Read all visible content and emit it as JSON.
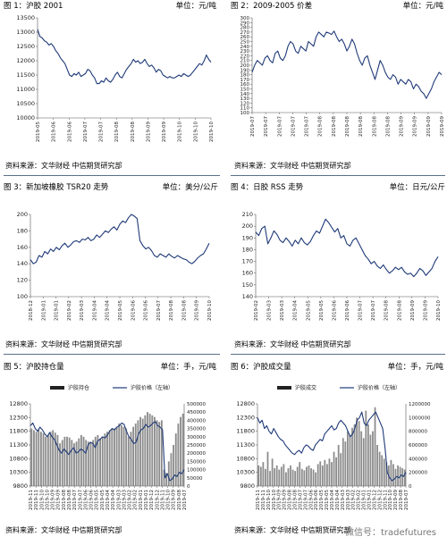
{
  "panels": [
    {
      "title": "图 1：沪胶 2001",
      "unit": "单位：元/吨",
      "source": "资料来源：文华财经  中信期货研究部"
    },
    {
      "title": "图 2：2009-2005 价差",
      "unit": "单位：元/吨",
      "source": "资料来源：文华财经  中信期货研究部"
    },
    {
      "title": "图 3：新加坡橡胶 TSR20 走势",
      "unit": "单位：美分/公斤",
      "source": "资料来源：文华财经  中信期货研究部"
    },
    {
      "title": "图 4：日胶 RSS 走势",
      "unit": "单位：日元/公斤",
      "source": "资料来源：文华财经  中信期货研究部"
    },
    {
      "title": "图 5：沪胶持仓量",
      "unit": "单位：手，元/吨",
      "source": "资料来源：文华财经  中信期货研究部"
    },
    {
      "title": "图 6：沪胶成交量",
      "unit": "单位：手，元/吨",
      "source": "资料来源：文华财经  中信期货研究部"
    }
  ],
  "watermark": "微信号：tradefutures",
  "colors": {
    "line": "#1f3a78",
    "bar": "#8c8c8c",
    "axis": "#555555",
    "separator": "#5a6f8a"
  },
  "chart_data": [
    {
      "type": "line",
      "ylim": [
        10000,
        13500
      ],
      "yticks": [
        10000,
        10500,
        11000,
        11500,
        12000,
        12500,
        13000,
        13500
      ],
      "xticks": [
        "2019-05",
        "2019-06",
        "2019-06",
        "2019-07",
        "2019-07",
        "2019-08",
        "2019-08",
        "2019-09",
        "2019-09",
        "2019-10",
        "2019-10",
        "2019-10"
      ],
      "values": [
        13100,
        12850,
        12800,
        12700,
        12650,
        12550,
        12600,
        12500,
        12350,
        12250,
        12100,
        12000,
        11900,
        11700,
        11500,
        11450,
        11550,
        11500,
        11600,
        11450,
        11500,
        11550,
        11700,
        11650,
        11500,
        11400,
        11200,
        11200,
        11300,
        11250,
        11400,
        11300,
        11250,
        11350,
        11500,
        11600,
        11450,
        11400,
        11550,
        11700,
        11800,
        11900,
        12050,
        11950,
        12000,
        11900,
        11950,
        12050,
        11900,
        11800,
        11850,
        11750,
        11600,
        11700,
        11650,
        11500,
        11450,
        11400,
        11450,
        11400,
        11400,
        11450,
        11500,
        11450,
        11550,
        11500,
        11450,
        11500,
        11600,
        11700,
        11800,
        11900,
        11850,
        12000,
        12200,
        12050,
        11950
      ]
    },
    {
      "type": "line",
      "ylim": [
        100,
        300
      ],
      "yticks": [
        100,
        110,
        120,
        130,
        140,
        150,
        160,
        170,
        180,
        190,
        200,
        210,
        220,
        230,
        240,
        250,
        260,
        270,
        280,
        290,
        300
      ],
      "xticks": [
        "2019-07",
        "2019-07",
        "2019-07",
        "2019-07",
        "2019-07",
        "2019-08",
        "2019-08",
        "2019-08",
        "2019-08",
        "2019-08",
        "2019-08",
        "2019-09",
        "2019-09",
        "2019-09",
        "2019-09"
      ],
      "values": [
        185,
        200,
        210,
        205,
        200,
        215,
        220,
        210,
        205,
        225,
        230,
        215,
        210,
        220,
        240,
        250,
        245,
        230,
        225,
        240,
        235,
        230,
        250,
        245,
        240,
        260,
        270,
        265,
        260,
        270,
        268,
        265,
        272,
        260,
        250,
        255,
        245,
        230,
        240,
        255,
        245,
        225,
        210,
        200,
        215,
        220,
        200,
        185,
        170,
        190,
        210,
        200,
        185,
        175,
        170,
        180,
        175,
        160,
        170,
        165,
        160,
        170,
        165,
        150,
        160,
        155,
        145,
        140,
        130,
        140,
        150,
        165,
        175,
        185,
        180
      ]
    },
    {
      "type": "line",
      "ylim": [
        100,
        200
      ],
      "yticks": [
        100,
        120,
        140,
        160,
        180,
        200
      ],
      "xticks": [
        "2018-12",
        "2019-01",
        "2019-01",
        "2019-02",
        "2019-03",
        "2019-04",
        "2019-04",
        "2019-05",
        "2019-06",
        "2019-06",
        "2019-07",
        "2019-08",
        "2019-08",
        "2019-09",
        "2019-10"
      ],
      "values": [
        145,
        140,
        142,
        150,
        148,
        155,
        152,
        158,
        155,
        160,
        157,
        162,
        165,
        160,
        163,
        167,
        168,
        166,
        170,
        169,
        172,
        168,
        170,
        175,
        172,
        176,
        180,
        178,
        182,
        185,
        181,
        188,
        192,
        190,
        196,
        200,
        198,
        195,
        168,
        162,
        158,
        160,
        156,
        150,
        148,
        152,
        150,
        148,
        152,
        149,
        147,
        150,
        148,
        146,
        145,
        142,
        140,
        143,
        147,
        150,
        152,
        158,
        165
      ]
    },
    {
      "type": "line",
      "ylim": [
        140,
        210
      ],
      "yticks": [
        140,
        150,
        160,
        170,
        180,
        190,
        200,
        210
      ],
      "xticks": [
        "2019-02",
        "2019-03",
        "2019-03",
        "2019-04",
        "2019-05",
        "2019-05",
        "2019-06",
        "2019-06",
        "2019-07",
        "2019-07",
        "2019-08",
        "2019-08",
        "2019-09",
        "2019-09",
        "2019-10"
      ],
      "values": [
        195,
        192,
        198,
        200,
        185,
        190,
        196,
        193,
        188,
        186,
        190,
        187,
        183,
        188,
        185,
        190,
        186,
        184,
        187,
        192,
        196,
        194,
        200,
        206,
        203,
        199,
        195,
        198,
        190,
        192,
        185,
        183,
        188,
        190,
        185,
        180,
        175,
        172,
        168,
        170,
        166,
        164,
        167,
        163,
        160,
        162,
        165,
        163,
        165,
        161,
        159,
        160,
        157,
        160,
        164,
        162,
        158,
        161,
        164,
        170,
        174
      ]
    },
    {
      "type": "bar+line",
      "series": [
        {
          "name": "沪胶持仓",
          "type": "bar"
        },
        {
          "name": "沪胶价格（左轴）",
          "type": "line"
        }
      ],
      "ylim_left": [
        9800,
        12800
      ],
      "yticks_left": [
        9800,
        10300,
        10800,
        11300,
        11800,
        12300,
        12800
      ],
      "ylim_right": [
        0,
        500000
      ],
      "yticks_right": [
        0,
        50000,
        100000,
        150000,
        200000,
        250000,
        300000,
        350000,
        400000,
        450000,
        500000
      ],
      "xticks": [
        "2019-11",
        "2019-11",
        "2019-10",
        "2019-10",
        "2019-09",
        "2019-09",
        "2019-08",
        "2019-08",
        "2019-07",
        "2019-07",
        "2019-06",
        "2019-06",
        "2019-05",
        "2019-05",
        "2019-04",
        "2019-04",
        "2019-03",
        "2019-03",
        "2019-02",
        "2019-02",
        "2019-01",
        "2019-01",
        "2019-12",
        "2019-12",
        "2019-11",
        "2019-10",
        "2019-09",
        "2019-08",
        "2019-07"
      ],
      "bars": [
        350000,
        340000,
        330000,
        345000,
        330000,
        320000,
        300000,
        310000,
        330000,
        340000,
        325000,
        310000,
        260000,
        280000,
        300000,
        300000,
        295000,
        280000,
        260000,
        270000,
        290000,
        310000,
        300000,
        280000,
        270000,
        260000,
        280000,
        300000,
        310000,
        290000,
        300000,
        320000,
        330000,
        340000,
        345000,
        350000,
        360000,
        380000,
        370000,
        360000,
        350000,
        300000,
        330000,
        360000,
        380000,
        400000,
        420000,
        410000,
        430000,
        450000,
        440000,
        430000,
        420000,
        400000,
        390000,
        400000,
        100000,
        80000,
        150000,
        200000,
        250000,
        320000,
        380000,
        420000,
        440000
      ],
      "line": [
        12000,
        12100,
        11900,
        11800,
        11950,
        11850,
        11700,
        11600,
        11750,
        11600,
        11500,
        11300,
        11100,
        11000,
        11150,
        11050,
        10950,
        11100,
        11200,
        11000,
        11050,
        11150,
        11100,
        11000,
        11300,
        11400,
        11350,
        11200,
        11450,
        11500,
        11600,
        11550,
        11650,
        11800,
        11900,
        11850,
        11950,
        12000,
        12100,
        12050,
        11800,
        11600,
        11500,
        11350,
        11400,
        11700,
        11850,
        11900,
        12050,
        11950,
        12000,
        12100,
        12150,
        12000,
        11950,
        11850,
        10100,
        10250,
        10000,
        10050,
        10200,
        10150,
        10300,
        10250,
        10400
      ]
    },
    {
      "type": "bar+line",
      "series": [
        {
          "name": "沪胶成交",
          "type": "bar"
        },
        {
          "name": "沪胶价格（左轴）",
          "type": "line"
        }
      ],
      "ylim_left": [
        9800,
        12800
      ],
      "yticks_left": [
        9800,
        10300,
        10800,
        11300,
        11800,
        12300,
        12800
      ],
      "ylim_right": [
        0,
        1200000
      ],
      "yticks_right": [
        0,
        200000,
        400000,
        600000,
        800000,
        1000000,
        1200000
      ],
      "xticks": [
        "2019-11",
        "2019-11",
        "2019-10",
        "2019-10",
        "2019-09",
        "2019-09",
        "2019-08",
        "2019-08",
        "2019-07",
        "2019-07",
        "2019-06",
        "2019-06",
        "2019-05",
        "2019-05",
        "2019-04",
        "2019-04",
        "2019-03",
        "2019-03",
        "2019-02",
        "2019-02",
        "2019-01",
        "2019-01",
        "2019-12",
        "2019-12",
        "2019-11",
        "2019-10",
        "2019-09",
        "2019-08",
        "2019-07"
      ],
      "bars": [
        300000,
        280000,
        350000,
        250000,
        500000,
        220000,
        400000,
        260000,
        300000,
        240000,
        280000,
        320000,
        200000,
        260000,
        300000,
        240000,
        220000,
        280000,
        350000,
        250000,
        230000,
        280000,
        300000,
        260000,
        240000,
        200000,
        320000,
        360000,
        300000,
        380000,
        320000,
        400000,
        350000,
        500000,
        420000,
        600000,
        480000,
        700000,
        650000,
        800000,
        750000,
        850000,
        900000,
        1000000,
        950000,
        800000,
        700000,
        1100000,
        900000,
        750000,
        800000,
        1150000,
        600000,
        500000,
        450000,
        400000,
        350000,
        300000,
        380000,
        320000,
        250000,
        300000,
        280000,
        260000,
        240000
      ],
      "line": [
        12300,
        12100,
        12200,
        11900,
        12000,
        11800,
        11700,
        11900,
        11750,
        11600,
        11500,
        11450,
        11300,
        11200,
        11100,
        11000,
        10950,
        11050,
        11100,
        11000,
        11200,
        11300,
        11250,
        11150,
        11100,
        11300,
        11400,
        11500,
        11450,
        11700,
        11800,
        11900,
        12000,
        11850,
        11900,
        12100,
        12200,
        12100,
        12000,
        11800,
        11600,
        11700,
        11900,
        12200,
        12300,
        12500,
        12100,
        12000,
        12200,
        12300,
        12400,
        12500,
        12300,
        12100,
        11900,
        11200,
        10300,
        10100,
        10000,
        10050,
        10150,
        10100,
        10200,
        10150,
        10300
      ]
    }
  ]
}
